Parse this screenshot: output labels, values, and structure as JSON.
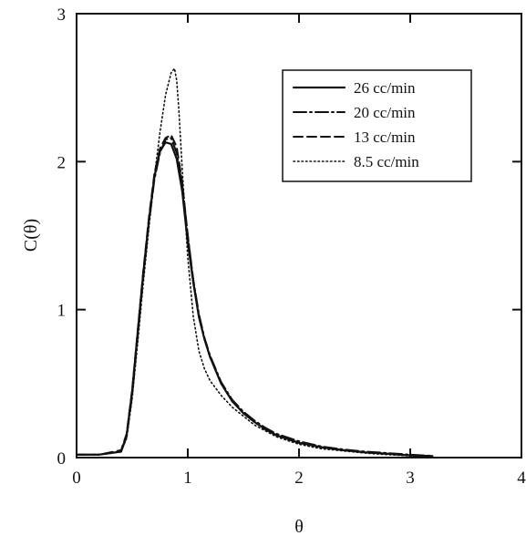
{
  "chart_data": {
    "type": "line",
    "title": "",
    "xlabel": "θ",
    "ylabel": "C(θ)",
    "xlim": [
      0,
      4
    ],
    "ylim": [
      0,
      3
    ],
    "x_ticks": [
      "0",
      "1",
      "2",
      "3",
      "4"
    ],
    "y_ticks": [
      "0",
      "1",
      "2",
      "3"
    ],
    "grid": false,
    "legend_position": "top-right",
    "series": [
      {
        "name": "26 cc/min",
        "style": "solid",
        "x": [
          0,
          0.2,
          0.4,
          0.45,
          0.5,
          0.55,
          0.6,
          0.65,
          0.7,
          0.75,
          0.8,
          0.85,
          0.9,
          0.95,
          1.0,
          1.05,
          1.1,
          1.15,
          1.2,
          1.3,
          1.4,
          1.5,
          1.6,
          1.7,
          1.8,
          2.0,
          2.2,
          2.4,
          2.6,
          2.8,
          3.0,
          3.2
        ],
        "y": [
          0.02,
          0.02,
          0.04,
          0.15,
          0.45,
          0.85,
          1.25,
          1.6,
          1.9,
          2.07,
          2.13,
          2.12,
          2.02,
          1.8,
          1.45,
          1.18,
          0.95,
          0.8,
          0.68,
          0.5,
          0.38,
          0.3,
          0.24,
          0.19,
          0.15,
          0.1,
          0.07,
          0.05,
          0.035,
          0.025,
          0.015,
          0.01
        ]
      },
      {
        "name": "20 cc/min",
        "style": "long-dash-dot",
        "x": [
          0,
          0.2,
          0.4,
          0.45,
          0.5,
          0.55,
          0.6,
          0.65,
          0.7,
          0.75,
          0.8,
          0.85,
          0.9,
          0.95,
          1.0,
          1.05,
          1.1,
          1.15,
          1.2,
          1.3,
          1.4,
          1.5,
          1.6,
          1.7,
          1.8,
          2.0,
          2.2,
          2.4,
          2.6,
          2.8,
          3.0,
          3.2
        ],
        "y": [
          0.02,
          0.02,
          0.04,
          0.14,
          0.42,
          0.82,
          1.22,
          1.58,
          1.88,
          2.06,
          2.15,
          2.16,
          2.06,
          1.84,
          1.5,
          1.2,
          0.97,
          0.81,
          0.69,
          0.51,
          0.39,
          0.31,
          0.25,
          0.2,
          0.16,
          0.11,
          0.075,
          0.055,
          0.04,
          0.03,
          0.02,
          0.012
        ]
      },
      {
        "name": "13 cc/min",
        "style": "dashed",
        "x": [
          0,
          0.2,
          0.4,
          0.45,
          0.5,
          0.55,
          0.6,
          0.65,
          0.7,
          0.75,
          0.8,
          0.85,
          0.9,
          0.95,
          1.0,
          1.05,
          1.1,
          1.15,
          1.2,
          1.3,
          1.4,
          1.5,
          1.6,
          1.7,
          1.8,
          2.0,
          2.2,
          2.4,
          2.6,
          2.8,
          3.0,
          3.2
        ],
        "y": [
          0.02,
          0.02,
          0.05,
          0.16,
          0.46,
          0.86,
          1.26,
          1.62,
          1.92,
          2.09,
          2.16,
          2.18,
          2.1,
          1.86,
          1.5,
          1.19,
          0.96,
          0.8,
          0.68,
          0.5,
          0.38,
          0.3,
          0.24,
          0.19,
          0.15,
          0.1,
          0.07,
          0.05,
          0.035,
          0.025,
          0.015,
          0.01
        ]
      },
      {
        "name": "8.5 cc/min",
        "style": "dotted",
        "x": [
          0,
          0.2,
          0.4,
          0.45,
          0.5,
          0.55,
          0.6,
          0.65,
          0.7,
          0.75,
          0.8,
          0.85,
          0.88,
          0.9,
          0.92,
          0.95,
          1.0,
          1.05,
          1.1,
          1.15,
          1.2,
          1.3,
          1.4,
          1.5,
          1.6,
          1.7,
          1.8,
          2.0,
          2.2,
          2.4,
          2.6,
          2.8,
          3.0,
          3.2
        ],
        "y": [
          0.02,
          0.02,
          0.04,
          0.13,
          0.4,
          0.78,
          1.18,
          1.55,
          1.9,
          2.2,
          2.45,
          2.6,
          2.63,
          2.55,
          2.35,
          1.95,
          1.35,
          0.95,
          0.72,
          0.6,
          0.52,
          0.42,
          0.34,
          0.28,
          0.22,
          0.18,
          0.14,
          0.09,
          0.06,
          0.045,
          0.03,
          0.02,
          0.012,
          0.008
        ]
      }
    ]
  }
}
